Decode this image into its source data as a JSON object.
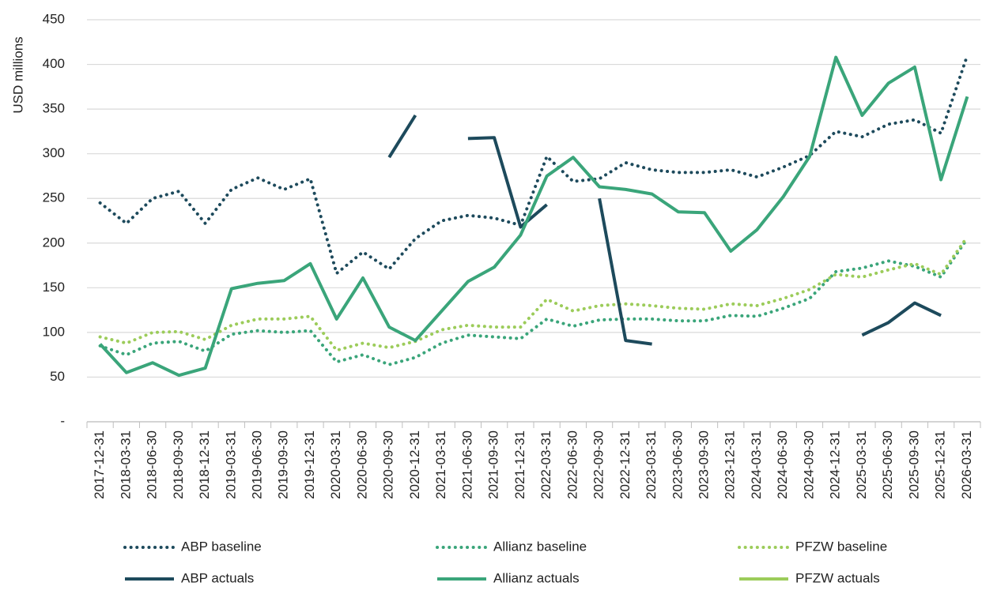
{
  "chart_data": {
    "type": "line",
    "y_label": "USD millions",
    "categories": [
      "2017-12-31",
      "2018-03-31",
      "2018-06-30",
      "2018-09-30",
      "2018-12-31",
      "2019-03-31",
      "2019-06-30",
      "2019-09-30",
      "2019-12-31",
      "2020-03-31",
      "2020-06-30",
      "2020-09-30",
      "2020-12-31",
      "2021-03-31",
      "2021-06-30",
      "2021-09-30",
      "2021-12-31",
      "2022-03-31",
      "2022-06-30",
      "2022-09-30",
      "2022-12-31",
      "2023-03-31",
      "2023-06-30",
      "2023-09-30",
      "2023-12-31",
      "2024-03-31",
      "2024-06-30",
      "2024-09-30",
      "2024-12-31",
      "2025-03-31",
      "2025-06-30",
      "2025-09-30",
      "2025-12-31",
      "2026-03-31"
    ],
    "series": [
      {
        "name": "ABP baseline",
        "color": "#1d4a5c",
        "style": "dotted",
        "values": [
          245,
          222,
          250,
          258,
          222,
          260,
          273,
          260,
          272,
          166,
          190,
          171,
          205,
          225,
          231,
          228,
          220,
          297,
          269,
          272,
          290,
          282,
          279,
          279,
          282,
          274,
          285,
          298,
          325,
          319,
          333,
          338,
          323,
          410
        ]
      },
      {
        "name": "Allianz baseline",
        "color": "#3aa57a",
        "style": "dotted",
        "values": [
          85,
          75,
          88,
          90,
          79,
          98,
          102,
          100,
          102,
          67,
          75,
          64,
          72,
          88,
          97,
          95,
          93,
          115,
          107,
          114,
          115,
          115,
          113,
          113,
          119,
          118,
          127,
          138,
          168,
          172,
          180,
          174,
          162,
          205
        ]
      },
      {
        "name": "PFZW baseline",
        "color": "#9ccc5a",
        "style": "dotted",
        "values": [
          95,
          88,
          100,
          101,
          92,
          108,
          115,
          115,
          118,
          80,
          88,
          83,
          90,
          103,
          108,
          106,
          106,
          137,
          124,
          130,
          132,
          130,
          127,
          126,
          132,
          130,
          138,
          148,
          165,
          162,
          170,
          177,
          165,
          207
        ]
      },
      {
        "name": "ABP actuals",
        "color": "#1d4a5c",
        "style": "solid",
        "values": [
          null,
          null,
          null,
          null,
          null,
          null,
          null,
          null,
          null,
          null,
          null,
          296,
          343,
          null,
          317,
          318,
          218,
          243,
          null,
          250,
          91,
          87,
          null,
          null,
          null,
          null,
          null,
          null,
          null,
          97,
          111,
          133,
          119,
          null
        ]
      },
      {
        "name": "Allianz actuals",
        "color": "#3aa57a",
        "style": "solid",
        "values": [
          87,
          55,
          66,
          52,
          60,
          149,
          155,
          158,
          177,
          115,
          161,
          106,
          91,
          124,
          157,
          173,
          209,
          275,
          296,
          263,
          260,
          255,
          235,
          234,
          191,
          215,
          252,
          297,
          408,
          343,
          379,
          397,
          271,
          364
        ]
      },
      {
        "name": "PFZW actuals",
        "color": "#9ccc5a",
        "style": "solid",
        "values": [
          null,
          null,
          null,
          null,
          null,
          null,
          null,
          null,
          null,
          null,
          null,
          null,
          null,
          null,
          null,
          null,
          null,
          null,
          null,
          null,
          null,
          null,
          null,
          null,
          null,
          null,
          null,
          null,
          null,
          null,
          null,
          null,
          null,
          null
        ]
      }
    ],
    "ylim": [
      0,
      450
    ],
    "yticks": [
      {
        "value": 0,
        "label": "-"
      },
      50,
      100,
      150,
      200,
      250,
      300,
      350,
      400,
      450
    ],
    "grid": true,
    "legend": "bottom"
  }
}
